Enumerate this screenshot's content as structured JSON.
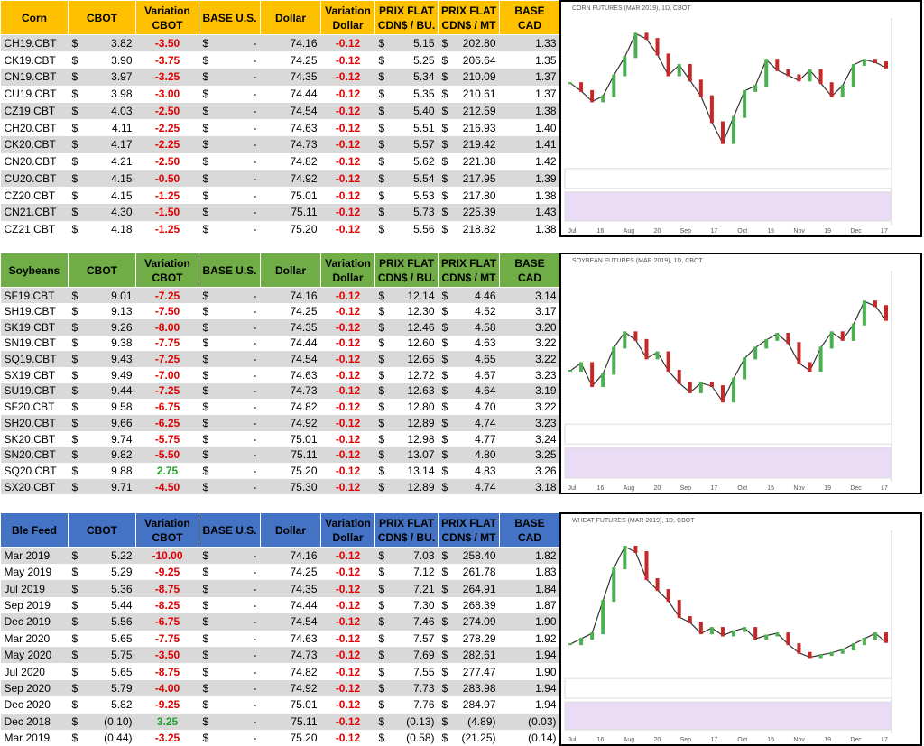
{
  "currency_symbol": "$",
  "sections": [
    {
      "headers": [
        "Corn",
        "CBOT",
        "Variation CBOT",
        "BASE U.S.",
        "Dollar",
        "Variation Dollar",
        "PRIX FLAT CDN$ / BU.",
        "PRIX FLAT CDN$ / MT",
        "BASE CAD"
      ],
      "rows": [
        [
          "CH19.CBT",
          "3.82",
          "-3.50",
          "-",
          "74.16",
          "-0.12",
          "5.15",
          "202.80",
          "1.33"
        ],
        [
          "CK19.CBT",
          "3.90",
          "-3.75",
          "-",
          "74.25",
          "-0.12",
          "5.25",
          "206.64",
          "1.35"
        ],
        [
          "CN19.CBT",
          "3.97",
          "-3.25",
          "-",
          "74.35",
          "-0.12",
          "5.34",
          "210.09",
          "1.37"
        ],
        [
          "CU19.CBT",
          "3.98",
          "-3.00",
          "-",
          "74.44",
          "-0.12",
          "5.35",
          "210.61",
          "1.37"
        ],
        [
          "CZ19.CBT",
          "4.03",
          "-2.50",
          "-",
          "74.54",
          "-0.12",
          "5.40",
          "212.59",
          "1.38"
        ],
        [
          "CH20.CBT",
          "4.11",
          "-2.25",
          "-",
          "74.63",
          "-0.12",
          "5.51",
          "216.93",
          "1.40"
        ],
        [
          "CK20.CBT",
          "4.17",
          "-2.25",
          "-",
          "74.73",
          "-0.12",
          "5.57",
          "219.42",
          "1.41"
        ],
        [
          "CN20.CBT",
          "4.21",
          "-2.50",
          "-",
          "74.82",
          "-0.12",
          "5.62",
          "221.38",
          "1.42"
        ],
        [
          "CU20.CBT",
          "4.15",
          "-0.50",
          "-",
          "74.92",
          "-0.12",
          "5.54",
          "217.95",
          "1.39"
        ],
        [
          "CZ20.CBT",
          "4.15",
          "-1.25",
          "-",
          "75.01",
          "-0.12",
          "5.53",
          "217.80",
          "1.38"
        ],
        [
          "CN21.CBT",
          "4.30",
          "-1.50",
          "-",
          "75.11",
          "-0.12",
          "5.73",
          "225.39",
          "1.43"
        ],
        [
          "CZ21.CBT",
          "4.18",
          "-1.25",
          "-",
          "75.20",
          "-0.12",
          "5.56",
          "218.82",
          "1.38"
        ]
      ],
      "chart": {
        "title": "CORN FUTURES (MAR 2019), 1D, CBOT",
        "x_labels": [
          "Jul",
          "16",
          "Aug",
          "20",
          "Sep",
          "17",
          "Oct",
          "15",
          "Nov",
          "19",
          "Dec",
          "17"
        ],
        "closes": [
          375,
          372,
          368,
          370,
          378,
          385,
          394,
          392,
          386,
          378,
          382,
          376,
          370,
          360,
          352,
          362,
          372,
          374,
          384,
          380,
          378,
          376,
          380,
          375,
          370,
          374,
          382,
          384,
          383,
          381
        ],
        "ylim": [
          345,
          400
        ]
      }
    },
    {
      "headers": [
        "Soybeans",
        "CBOT",
        "Variation CBOT",
        "BASE U.S.",
        "Dollar",
        "Variation Dollar",
        "PRIX FLAT CDN$ / BU.",
        "PRIX FLAT CDN$ / MT",
        "BASE CAD"
      ],
      "rows": [
        [
          "SF19.CBT",
          "9.01",
          "-7.25",
          "-",
          "74.16",
          "-0.12",
          "12.14",
          "4.46",
          "3.14"
        ],
        [
          "SH19.CBT",
          "9.13",
          "-7.50",
          "-",
          "74.25",
          "-0.12",
          "12.30",
          "4.52",
          "3.17"
        ],
        [
          "SK19.CBT",
          "9.26",
          "-8.00",
          "-",
          "74.35",
          "-0.12",
          "12.46",
          "4.58",
          "3.20"
        ],
        [
          "SN19.CBT",
          "9.38",
          "-7.75",
          "-",
          "74.44",
          "-0.12",
          "12.60",
          "4.63",
          "3.22"
        ],
        [
          "SQ19.CBT",
          "9.43",
          "-7.25",
          "-",
          "74.54",
          "-0.12",
          "12.65",
          "4.65",
          "3.22"
        ],
        [
          "SX19.CBT",
          "9.49",
          "-7.00",
          "-",
          "74.63",
          "-0.12",
          "12.72",
          "4.67",
          "3.23"
        ],
        [
          "SU19.CBT",
          "9.44",
          "-7.25",
          "-",
          "74.73",
          "-0.12",
          "12.63",
          "4.64",
          "3.19"
        ],
        [
          "SF20.CBT",
          "9.58",
          "-6.75",
          "-",
          "74.82",
          "-0.12",
          "12.80",
          "4.70",
          "3.22"
        ],
        [
          "SH20.CBT",
          "9.66",
          "-6.25",
          "-",
          "74.92",
          "-0.12",
          "12.89",
          "4.74",
          "3.23"
        ],
        [
          "SK20.CBT",
          "9.74",
          "-5.75",
          "-",
          "75.01",
          "-0.12",
          "12.98",
          "4.77",
          "3.24"
        ],
        [
          "SN20.CBT",
          "9.82",
          "-5.50",
          "-",
          "75.11",
          "-0.12",
          "13.07",
          "4.80",
          "3.25"
        ],
        [
          "SQ20.CBT",
          "9.88",
          "2.75",
          "-",
          "75.20",
          "-0.12",
          "13.14",
          "4.83",
          "3.26"
        ],
        [
          "SX20.CBT",
          "9.71",
          "-4.50",
          "-",
          "75.30",
          "-0.12",
          "12.89",
          "4.74",
          "3.18"
        ]
      ],
      "chart": {
        "title": "SOYBEAN FUTURES (MAR 2019), 1D, CBOT",
        "x_labels": [
          "Jul",
          "16",
          "Aug",
          "20",
          "Sep",
          "17",
          "Oct",
          "15",
          "Nov",
          "19",
          "Dec",
          "17"
        ],
        "closes": [
          880,
          885,
          870,
          878,
          895,
          905,
          900,
          888,
          892,
          880,
          872,
          866,
          872,
          870,
          860,
          875,
          888,
          895,
          900,
          904,
          898,
          885,
          880,
          895,
          905,
          900,
          910,
          925,
          922,
          913
        ],
        "ylim": [
          850,
          945
        ]
      }
    },
    {
      "headers": [
        "Ble Feed",
        "CBOT",
        "Variation CBOT",
        "BASE U.S.",
        "Dollar",
        "Variation Dollar",
        "PRIX FLAT CDN$ / BU.",
        "PRIX FLAT CDN$ / MT",
        "BASE CAD"
      ],
      "rows": [
        [
          "Mar 2019",
          "5.22",
          "-10.00",
          "-",
          "74.16",
          "-0.12",
          "7.03",
          "258.40",
          "1.82"
        ],
        [
          "May 2019",
          "5.29",
          "-9.25",
          "-",
          "74.25",
          "-0.12",
          "7.12",
          "261.78",
          "1.83"
        ],
        [
          "Jul 2019",
          "5.36",
          "-8.75",
          "-",
          "74.35",
          "-0.12",
          "7.21",
          "264.91",
          "1.84"
        ],
        [
          "Sep 2019",
          "5.44",
          "-8.25",
          "-",
          "74.44",
          "-0.12",
          "7.30",
          "268.39",
          "1.87"
        ],
        [
          "Dec 2019",
          "5.56",
          "-6.75",
          "-",
          "74.54",
          "-0.12",
          "7.46",
          "274.09",
          "1.90"
        ],
        [
          "Mar 2020",
          "5.65",
          "-7.75",
          "-",
          "74.63",
          "-0.12",
          "7.57",
          "278.29",
          "1.92"
        ],
        [
          "May 2020",
          "5.75",
          "-3.50",
          "-",
          "74.73",
          "-0.12",
          "7.69",
          "282.61",
          "1.94"
        ],
        [
          "Jul 2020",
          "5.65",
          "-8.75",
          "-",
          "74.82",
          "-0.12",
          "7.55",
          "277.47",
          "1.90"
        ],
        [
          "Sep 2020",
          "5.79",
          "-4.00",
          "-",
          "74.92",
          "-0.12",
          "7.73",
          "283.98",
          "1.94"
        ],
        [
          "Dec 2020",
          "5.82",
          "-9.25",
          "-",
          "75.01",
          "-0.12",
          "7.76",
          "284.97",
          "1.94"
        ],
        [
          "Dec 2018",
          "(0.10)",
          "3.25",
          "-",
          "75.11",
          "-0.12",
          "(0.13)",
          "(4.89)",
          "(0.03)"
        ],
        [
          "Mar 2019",
          "(0.44)",
          "-3.25",
          "-",
          "75.20",
          "-0.12",
          "(0.58)",
          "(21.25)",
          "(0.14)"
        ]
      ],
      "chart": {
        "title": "WHEAT FUTURES (MAR 2019), 1D, CBOT",
        "x_labels": [
          "Jul",
          "16",
          "Aug",
          "20",
          "Sep",
          "17",
          "Oct",
          "15",
          "Nov",
          "19",
          "Dec",
          "17"
        ],
        "closes": [
          520,
          525,
          530,
          560,
          590,
          610,
          605,
          580,
          570,
          560,
          545,
          540,
          530,
          535,
          528,
          532,
          535,
          525,
          528,
          530,
          520,
          512,
          508,
          510,
          512,
          515,
          520,
          525,
          530,
          522
        ],
        "ylim": [
          495,
          625
        ]
      }
    }
  ]
}
